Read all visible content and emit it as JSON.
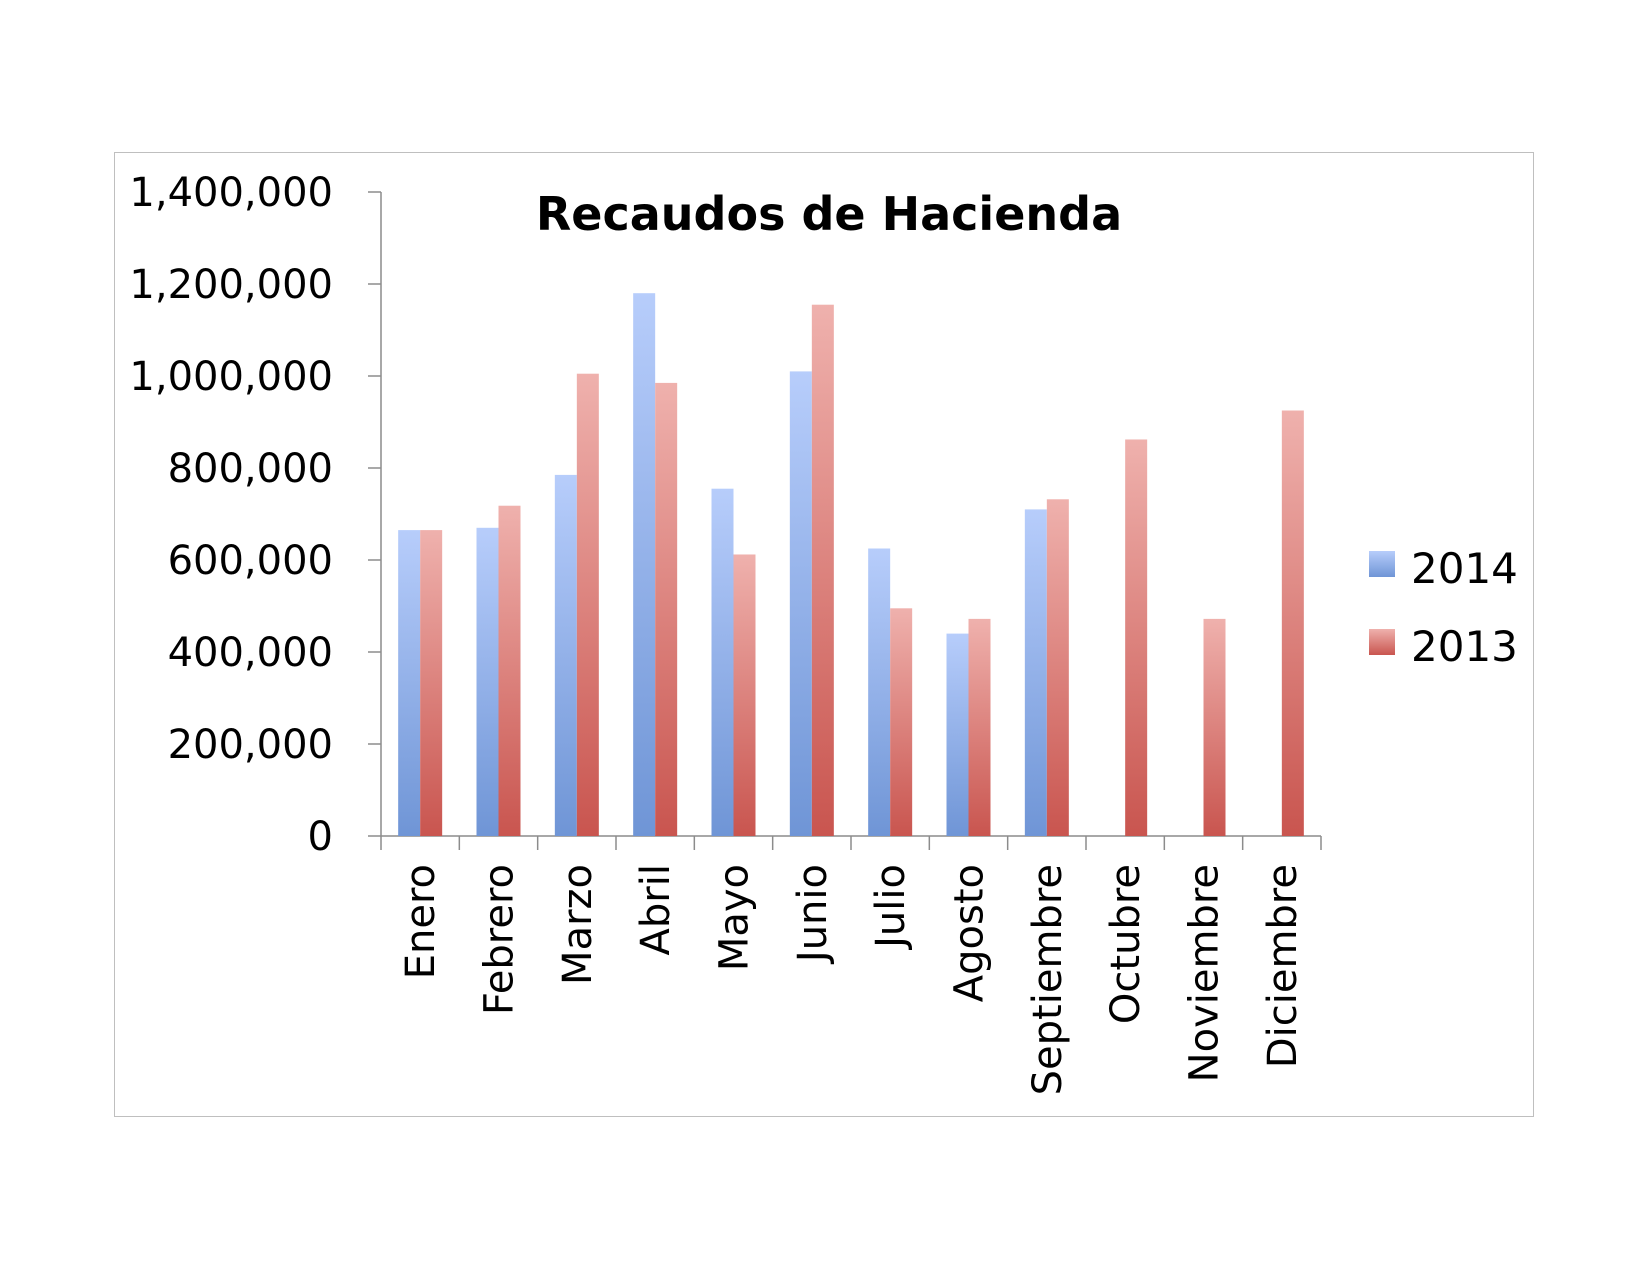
{
  "chart_data": {
    "type": "bar",
    "title": "Recaudos de Hacienda",
    "xlabel": "",
    "ylabel": "",
    "ylim": [
      0,
      1400000
    ],
    "yticks": [
      0,
      200000,
      400000,
      600000,
      800000,
      1000000,
      1200000,
      1400000
    ],
    "ytick_labels": [
      "0",
      "200,000",
      "400,000",
      "600,000",
      "800,000",
      "1,000,000",
      "1,200,000",
      "1,400,000"
    ],
    "categories": [
      "Enero",
      "Febrero",
      "Marzo",
      "Abril",
      "Mayo",
      "Junio",
      "Julio",
      "Agosto",
      "Septiembre",
      "Octubre",
      "Noviembre",
      "Diciembre"
    ],
    "series": [
      {
        "name": "2014",
        "color_top": "#b7cdfb",
        "color_bottom": "#6f95d6",
        "values": [
          665000,
          670000,
          785000,
          1180000,
          755000,
          1010000,
          625000,
          440000,
          710000,
          null,
          null,
          null
        ]
      },
      {
        "name": "2013",
        "color_top": "#efb1ad",
        "color_bottom": "#c9554f",
        "values": [
          665000,
          718000,
          1005000,
          985000,
          612000,
          1155000,
          495000,
          472000,
          732000,
          862000,
          472000,
          925000
        ]
      }
    ],
    "grid": false,
    "legend_position": "right"
  }
}
